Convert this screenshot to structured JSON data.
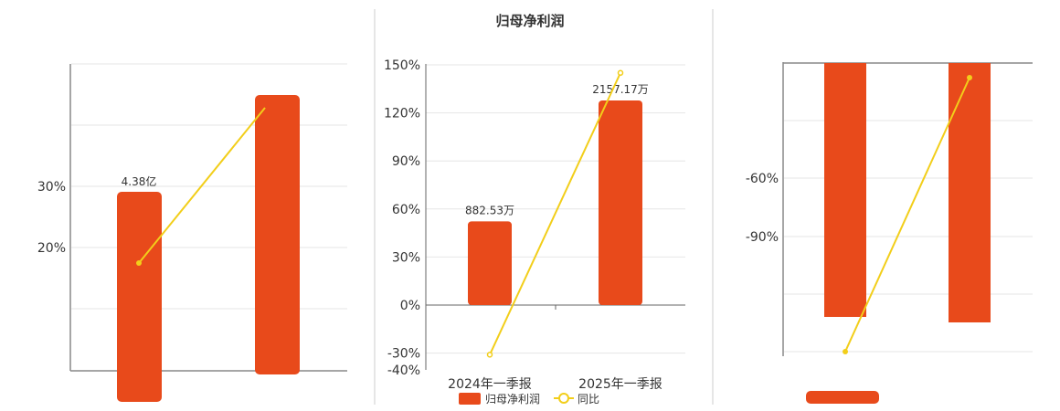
{
  "colors": {
    "bar": "#E84A1B",
    "line": "#F2CE1A",
    "grid": "#e6e6e6",
    "axis": "#666666",
    "divider": "#cccccc"
  },
  "chart_data": [
    {
      "type": "bar+line",
      "panel": "left",
      "title": "",
      "y_ticks": [
        "30%",
        "20%"
      ],
      "bars": {
        "data_labels": [
          "4.38亿"
        ]
      }
    },
    {
      "type": "bar+line",
      "panel": "center",
      "title": "归母净利润",
      "categories": [
        "2024年一季报",
        "2025年一季报"
      ],
      "ylim": [
        -40,
        150
      ],
      "y_ticks": [
        {
          "label": "150%",
          "value": 150
        },
        {
          "label": "120%",
          "value": 120
        },
        {
          "label": "90%",
          "value": 90
        },
        {
          "label": "60%",
          "value": 60
        },
        {
          "label": "30%",
          "value": 30
        },
        {
          "label": "0%",
          "value": 0
        },
        {
          "label": "-30%",
          "value": -30
        },
        {
          "label": "-40%",
          "value": -40
        }
      ],
      "series": [
        {
          "name": "归母净利润",
          "type": "bar",
          "values": [
            882.53,
            2157.17
          ],
          "unit": "万",
          "data_labels": [
            "882.53万",
            "2157.17万"
          ]
        },
        {
          "name": "同比",
          "type": "line",
          "values": [
            -31,
            145
          ]
        }
      ],
      "legend_placement": "bottom"
    },
    {
      "type": "bar+line",
      "panel": "right",
      "title": "",
      "y_ticks": [
        "-60%",
        "-90%"
      ]
    }
  ]
}
